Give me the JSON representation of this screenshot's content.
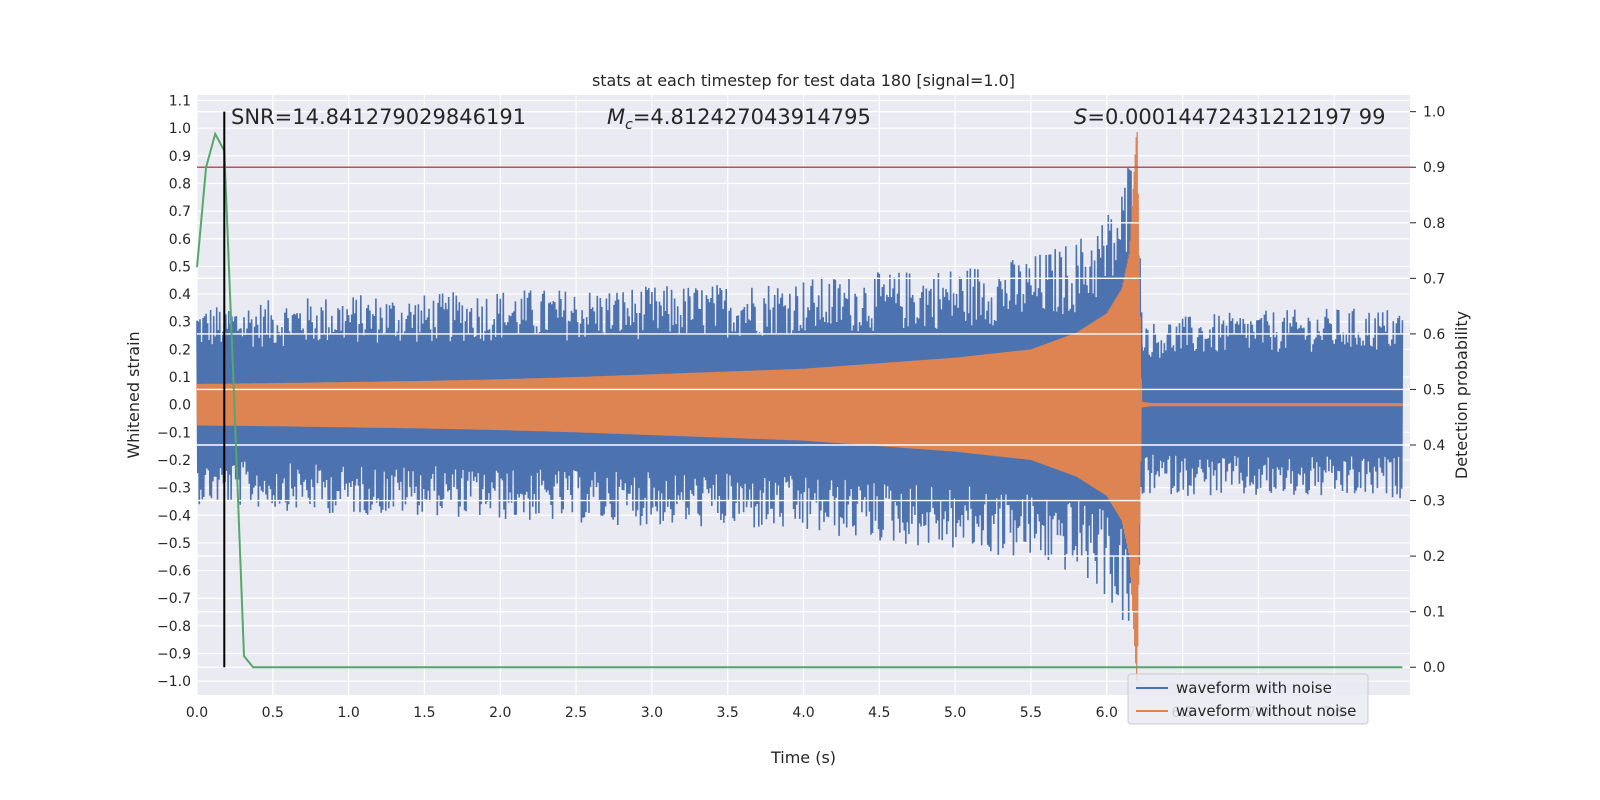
{
  "chart_data": {
    "type": "line",
    "title": "stats at each timestep for test data 180 [signal=1.0]",
    "xlabel": "Time (s)",
    "ylabel_left": "Whitened strain",
    "ylabel_right": "Detection probability",
    "xlim": [
      0.0,
      8.0
    ],
    "ylim_left": [
      -1.05,
      1.12
    ],
    "ylim_right": [
      -0.05,
      1.03
    ],
    "x_ticks": [
      0.0,
      0.5,
      1.0,
      1.5,
      2.0,
      2.5,
      3.0,
      3.5,
      4.0,
      4.5,
      5.0,
      5.5,
      6.0,
      6.5,
      7.0,
      7.5
    ],
    "x_tick_labels": [
      "0.0",
      "0.5",
      "1.0",
      "1.5",
      "2.0",
      "2.5",
      "3.0",
      "3.5",
      "4.0",
      "4.5",
      "5.0",
      "5.5",
      "6.0",
      "6.5",
      "7.0",
      "7.5"
    ],
    "y_left_ticks": [
      1.1,
      1.0,
      0.9,
      0.8,
      0.7,
      0.6,
      0.5,
      0.4,
      0.3,
      0.2,
      0.1,
      0.0,
      -0.1,
      -0.2,
      -0.3,
      -0.4,
      -0.5,
      -0.6,
      -0.7,
      -0.8,
      -0.9,
      -1.0
    ],
    "y_left_tick_labels": [
      "1.1",
      "1.0",
      "0.9",
      "0.8",
      "0.7",
      "0.6",
      "0.5",
      "0.4",
      "0.3",
      "0.2",
      "0.1",
      "0.0",
      "−0.1",
      "−0.2",
      "−0.3",
      "−0.4",
      "−0.5",
      "−0.6",
      "−0.7",
      "−0.8",
      "−0.9",
      "−1.0"
    ],
    "y_right_ticks": [
      1.0,
      0.9,
      0.8,
      0.7,
      0.6,
      0.5,
      0.4,
      0.3,
      0.2,
      0.1,
      0.0
    ],
    "y_right_tick_labels": [
      "1.0",
      "0.9",
      "0.8",
      "0.7",
      "0.6",
      "0.5",
      "0.4",
      "0.3",
      "0.2",
      "0.1",
      "0.0"
    ],
    "grid": true,
    "annotations": {
      "snr": "SNR=14.841279029846191",
      "mc_symbol": "M",
      "mc_sub": "c",
      "mc_value": "=4.812427043914795",
      "s_symbol": "S",
      "s_value": "=0.00014472431212197 99"
    },
    "threshold": {
      "axis": "right",
      "value": 0.9,
      "color": "#c44e52"
    },
    "detection_marker": {
      "x": 0.18,
      "color": "#000000"
    },
    "series": [
      {
        "name": "waveform with noise",
        "axis": "left",
        "color": "#4c72b0",
        "envelope": {
          "x": [
            0.0,
            0.5,
            1.0,
            1.5,
            2.0,
            2.5,
            3.0,
            3.5,
            4.0,
            4.5,
            5.0,
            5.5,
            5.8,
            6.0,
            6.1,
            6.15,
            6.2,
            6.23,
            6.3,
            6.5,
            7.0,
            7.5,
            8.0
          ],
          "upper": [
            0.36,
            0.38,
            0.4,
            0.4,
            0.42,
            0.42,
            0.43,
            0.44,
            0.46,
            0.48,
            0.5,
            0.54,
            0.6,
            0.7,
            0.8,
            0.92,
            1.02,
            0.35,
            0.3,
            0.32,
            0.34,
            0.35,
            0.35
          ],
          "lower": [
            -0.36,
            -0.38,
            -0.4,
            -0.4,
            -0.42,
            -0.43,
            -0.44,
            -0.45,
            -0.47,
            -0.5,
            -0.53,
            -0.57,
            -0.62,
            -0.7,
            -0.8,
            -0.88,
            -0.96,
            -0.36,
            -0.32,
            -0.33,
            -0.34,
            -0.34,
            -0.34
          ]
        }
      },
      {
        "name": "waveform without noise",
        "axis": "left",
        "color": "#dd8452",
        "envelope": {
          "x": [
            0.0,
            0.5,
            1.0,
            1.5,
            2.0,
            2.5,
            3.0,
            3.5,
            4.0,
            4.5,
            5.0,
            5.5,
            5.8,
            6.0,
            6.1,
            6.15,
            6.2,
            6.23,
            6.3,
            8.0
          ],
          "upper": [
            0.075,
            0.078,
            0.082,
            0.086,
            0.092,
            0.1,
            0.11,
            0.12,
            0.13,
            0.15,
            0.17,
            0.2,
            0.26,
            0.33,
            0.42,
            0.55,
            1.02,
            0.01,
            0.005,
            0.005
          ],
          "lower": [
            -0.075,
            -0.078,
            -0.082,
            -0.086,
            -0.092,
            -0.1,
            -0.11,
            -0.12,
            -0.13,
            -0.15,
            -0.17,
            -0.2,
            -0.26,
            -0.33,
            -0.42,
            -0.55,
            -0.98,
            -0.01,
            -0.005,
            -0.005
          ]
        }
      },
      {
        "name": "detection probability",
        "axis": "right",
        "color": "#55a868",
        "x": [
          0.0,
          0.06,
          0.12,
          0.18,
          0.25,
          0.31,
          0.37,
          0.5,
          1.0,
          2.0,
          3.0,
          4.0,
          5.0,
          6.0,
          7.0,
          7.95
        ],
        "values": [
          0.72,
          0.9,
          0.96,
          0.93,
          0.45,
          0.02,
          0.0,
          0.0,
          0.0,
          0.0,
          0.0,
          0.0,
          0.0,
          0.0,
          0.0,
          0.0
        ]
      }
    ],
    "legend": {
      "position": "lower-right",
      "entries": [
        "waveform with noise",
        "waveform without noise"
      ]
    }
  }
}
